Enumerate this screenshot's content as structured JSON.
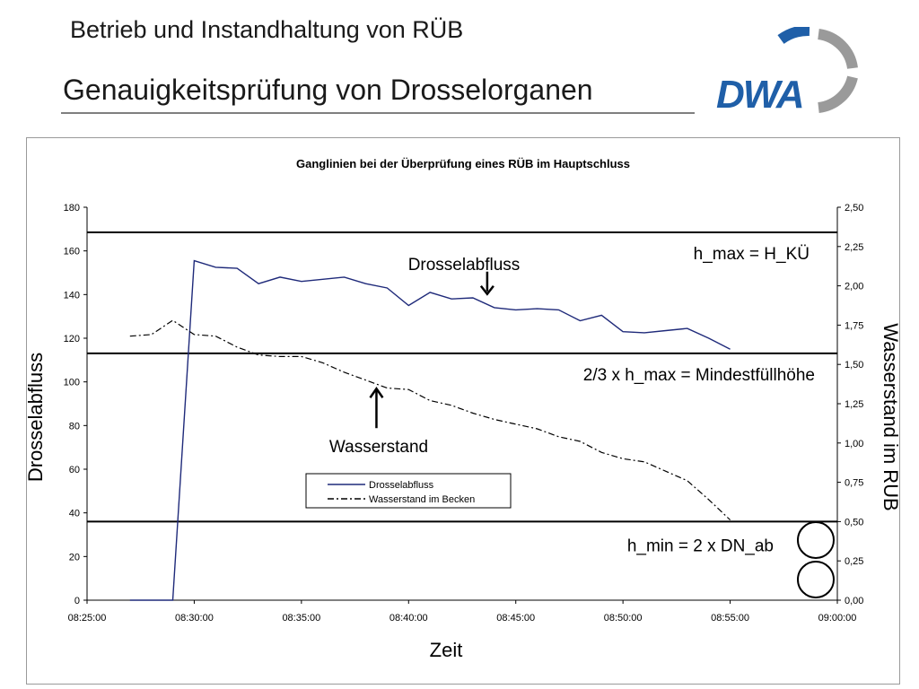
{
  "header": {
    "subtitle": "Betrieb und Instandhaltung von RÜB",
    "title": "Genauigkeitsprüfung von Drosselorganen",
    "logo_text": "DWA",
    "logo_colors": {
      "blue": "#1f5fa8",
      "gray": "#9a9a9a"
    }
  },
  "chart_data": {
    "type": "line",
    "title": "Ganglinien bei der Überprüfung eines RÜB im Hauptschluss",
    "xlabel": "Zeit",
    "ylabel": "Drosselabfluss",
    "ylabel_right": "Wasserstand im RÜB",
    "x_ticks": [
      "08:25:00",
      "08:30:00",
      "08:35:00",
      "08:40:00",
      "08:45:00",
      "08:50:00",
      "08:55:00",
      "09:00:00"
    ],
    "xlim_minutes": [
      0,
      35
    ],
    "ylim": [
      0,
      180
    ],
    "y_ticks": [
      "0",
      "20",
      "40",
      "60",
      "80",
      "100",
      "120",
      "140",
      "160",
      "180"
    ],
    "ylim_right": [
      0,
      2.5
    ],
    "y_ticks_right": [
      "0,00",
      "0,25",
      "0,50",
      "0,75",
      "1,00",
      "1,25",
      "1,50",
      "1,75",
      "2,00",
      "2,25",
      "2,50"
    ],
    "series": [
      {
        "name": "Drosselabfluss",
        "axis": "left",
        "color": "#1f2a7a",
        "style": "solid",
        "x": [
          2,
          3,
          4,
          5,
          6,
          7,
          8,
          9,
          10,
          11,
          12,
          13,
          14,
          15,
          16,
          17,
          18,
          19,
          20,
          21,
          22,
          23,
          24,
          25,
          26,
          27,
          28,
          29,
          30
        ],
        "y": [
          0,
          0,
          0,
          155.5,
          152.5,
          152,
          145,
          148,
          146,
          147,
          148,
          145,
          143,
          135,
          141,
          138,
          138.5,
          134,
          133,
          133.5,
          133,
          128,
          130.5,
          123,
          122.5,
          123.5,
          124.5,
          120,
          115
        ]
      },
      {
        "name": "Wasserstand im Becken",
        "axis": "right",
        "color": "#000000",
        "style": "dashdot",
        "x": [
          2,
          3,
          4,
          5,
          6,
          7,
          8,
          9,
          10,
          11,
          12,
          13,
          14,
          15,
          16,
          17,
          18,
          19,
          20,
          21,
          22,
          23,
          24,
          25,
          26,
          27,
          28,
          29,
          30
        ],
        "y": [
          1.68,
          1.69,
          1.78,
          1.69,
          1.68,
          1.61,
          1.56,
          1.55,
          1.55,
          1.51,
          1.45,
          1.4,
          1.35,
          1.34,
          1.27,
          1.24,
          1.19,
          1.15,
          1.12,
          1.09,
          1.04,
          1.01,
          0.94,
          0.9,
          0.88,
          0.82,
          0.76,
          0.64,
          0.51
        ]
      }
    ],
    "reference_lines": [
      {
        "label": "h_max = H_KÜ",
        "y_right": 2.34
      },
      {
        "label": "2/3 x h_max = Mindestfüllhöhe",
        "y_right": 1.57
      },
      {
        "label": "h_min = 2 x DN_ab",
        "y_right": 0.5
      }
    ],
    "annotations": [
      {
        "label": "Drosselabfluss",
        "arrow": "down",
        "x": 18.5,
        "y": 139
      },
      {
        "label": "Wasserstand",
        "arrow": "up",
        "x": 13.5,
        "y_right": 1.38
      }
    ],
    "legend": {
      "placement": "center-bottom",
      "items": [
        "Drosselabfluss",
        "Wasserstand im Becken"
      ]
    },
    "grid": false
  }
}
